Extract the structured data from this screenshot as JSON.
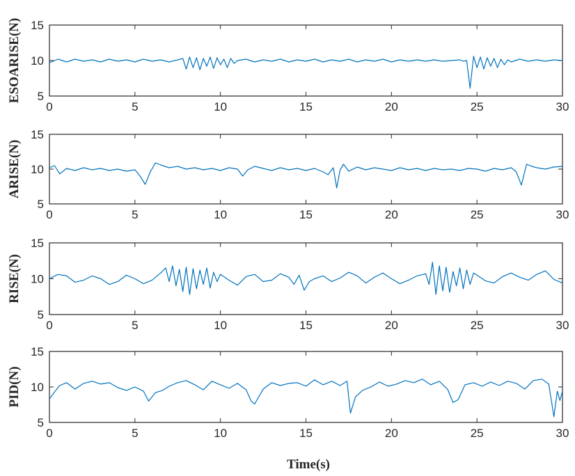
{
  "figure": {
    "xlabel": "Time(s)"
  },
  "chart_data": [
    {
      "type": "line",
      "ylabel": "ESOARISE(N)",
      "xlim": [
        0,
        30
      ],
      "ylim": [
        5,
        15
      ],
      "xticks": [
        0,
        5,
        10,
        15,
        20,
        25,
        30
      ],
      "yticks": [
        5,
        10,
        15
      ],
      "color": "#0072BD",
      "series": [
        {
          "x": [
            0,
            0.5,
            1,
            1.5,
            2,
            2.5,
            3,
            3.5,
            4,
            4.5,
            5,
            5.5,
            6,
            6.5,
            7,
            7.5,
            7.8,
            8,
            8.2,
            8.4,
            8.6,
            8.8,
            9,
            9.2,
            9.4,
            9.6,
            9.8,
            10,
            10.2,
            10.4,
            10.6,
            10.8,
            11,
            11.5,
            12,
            12.5,
            13,
            13.5,
            14,
            14.5,
            15,
            15.5,
            16,
            16.5,
            17,
            17.5,
            18,
            18.5,
            19,
            19.5,
            20,
            20.5,
            21,
            21.5,
            22,
            22.5,
            23,
            23.5,
            24,
            24.2,
            24.4,
            24.6,
            24.8,
            25,
            25.2,
            25.4,
            25.6,
            25.8,
            26,
            26.2,
            26.4,
            26.6,
            26.8,
            27,
            27.5,
            28,
            28.5,
            29,
            29.5,
            30
          ],
          "y": [
            9.7,
            10.2,
            9.8,
            10.2,
            9.9,
            10.1,
            9.8,
            10.2,
            9.9,
            10.1,
            9.8,
            10.2,
            9.9,
            10.1,
            9.8,
            10.1,
            10.3,
            8.8,
            10.5,
            9.0,
            10.4,
            8.7,
            10.3,
            9.2,
            10.5,
            8.9,
            10.4,
            9.4,
            10.2,
            9.0,
            10.3,
            9.6,
            10.0,
            10.2,
            9.8,
            10.1,
            9.9,
            10.2,
            9.8,
            10.1,
            9.9,
            10.2,
            9.8,
            10.1,
            9.9,
            10.2,
            9.8,
            10.1,
            9.9,
            10.2,
            9.8,
            10.1,
            9.9,
            10.1,
            9.9,
            10.1,
            9.9,
            10.0,
            10.1,
            9.9,
            10.0,
            6.1,
            10.6,
            9.0,
            10.5,
            8.8,
            10.4,
            9.2,
            10.3,
            9.0,
            10.2,
            9.4,
            10.1,
            9.8,
            10.2,
            9.9,
            10.1,
            9.9,
            10.1,
            10.0
          ]
        }
      ]
    },
    {
      "type": "line",
      "ylabel": "ARISE(N)",
      "xlim": [
        0,
        30
      ],
      "ylim": [
        5,
        15
      ],
      "xticks": [
        0,
        5,
        10,
        15,
        20,
        25,
        30
      ],
      "yticks": [
        5,
        10,
        15
      ],
      "color": "#0072BD",
      "series": [
        {
          "x": [
            0,
            0.3,
            0.6,
            1,
            1.5,
            2,
            2.5,
            3,
            3.5,
            4,
            4.5,
            5,
            5.3,
            5.6,
            5.9,
            6.2,
            6.5,
            7,
            7.5,
            8,
            8.5,
            9,
            9.5,
            10,
            10.5,
            11,
            11.3,
            11.6,
            12,
            12.5,
            13,
            13.5,
            14,
            14.5,
            15,
            15.5,
            16,
            16.3,
            16.6,
            16.8,
            17,
            17.2,
            17.5,
            18,
            18.5,
            19,
            19.5,
            20,
            20.5,
            21,
            21.5,
            22,
            22.5,
            23,
            23.5,
            24,
            24.5,
            25,
            25.5,
            26,
            26.5,
            27,
            27.3,
            27.6,
            27.9,
            28.2,
            28.5,
            29,
            29.5,
            30
          ],
          "y": [
            10.2,
            10.5,
            9.3,
            10.1,
            9.8,
            10.2,
            9.9,
            10.1,
            9.8,
            10.0,
            9.7,
            9.9,
            9.0,
            7.8,
            9.6,
            10.9,
            10.6,
            10.2,
            10.4,
            10.0,
            10.2,
            9.9,
            10.1,
            9.8,
            10.2,
            10.0,
            9.0,
            9.9,
            10.4,
            10.1,
            9.8,
            10.2,
            9.9,
            10.1,
            9.8,
            10.1,
            9.6,
            9.2,
            10.2,
            7.3,
            9.9,
            10.7,
            9.7,
            10.3,
            9.9,
            10.2,
            10.0,
            9.8,
            10.2,
            9.9,
            10.1,
            9.8,
            10.1,
            9.9,
            10.0,
            9.8,
            10.1,
            10.0,
            9.7,
            10.1,
            9.9,
            10.2,
            9.6,
            7.7,
            10.7,
            10.4,
            10.2,
            10.0,
            10.3,
            10.4
          ]
        }
      ]
    },
    {
      "type": "line",
      "ylabel": "RISE(N)",
      "xlim": [
        0,
        30
      ],
      "ylim": [
        5,
        15
      ],
      "xticks": [
        0,
        5,
        10,
        15,
        20,
        25,
        30
      ],
      "yticks": [
        5,
        10,
        15
      ],
      "color": "#0072BD",
      "series": [
        {
          "x": [
            0,
            0.5,
            1,
            1.5,
            2,
            2.5,
            3,
            3.5,
            4,
            4.5,
            5,
            5.5,
            6,
            6.5,
            6.8,
            7,
            7.2,
            7.4,
            7.6,
            7.8,
            8,
            8.2,
            8.4,
            8.6,
            8.8,
            9,
            9.2,
            9.4,
            9.6,
            9.8,
            10,
            10.5,
            11,
            11.5,
            12,
            12.5,
            13,
            13.5,
            14,
            14.3,
            14.6,
            14.9,
            15.2,
            15.5,
            16,
            16.5,
            17,
            17.5,
            18,
            18.5,
            19,
            19.5,
            20,
            20.5,
            21,
            21.5,
            22,
            22.2,
            22.4,
            22.6,
            22.8,
            23,
            23.2,
            23.4,
            23.6,
            23.8,
            24,
            24.2,
            24.4,
            24.6,
            24.8,
            25,
            25.5,
            26,
            26.5,
            27,
            27.5,
            28,
            28.5,
            29,
            29.5,
            30
          ],
          "y": [
            10.0,
            10.6,
            10.4,
            9.5,
            9.8,
            10.4,
            10.0,
            9.2,
            9.6,
            10.5,
            10.0,
            9.3,
            9.8,
            10.8,
            11.5,
            9.6,
            11.8,
            9.0,
            11.3,
            8.2,
            11.6,
            7.8,
            11.4,
            8.6,
            11.2,
            9.2,
            11.5,
            8.7,
            10.9,
            9.6,
            10.6,
            9.8,
            9.1,
            10.3,
            10.6,
            9.6,
            9.8,
            10.7,
            10.2,
            9.2,
            10.5,
            8.4,
            9.6,
            10.0,
            10.4,
            9.6,
            10.1,
            10.9,
            10.4,
            9.4,
            10.2,
            10.8,
            10.0,
            9.3,
            9.8,
            10.4,
            10.7,
            9.2,
            12.3,
            7.8,
            11.8,
            8.3,
            11.6,
            8.1,
            11.0,
            9.0,
            11.5,
            8.6,
            11.2,
            9.2,
            10.8,
            10.5,
            9.7,
            9.4,
            10.3,
            10.8,
            10.2,
            9.8,
            10.6,
            11.1,
            9.9,
            9.4
          ]
        }
      ]
    },
    {
      "type": "line",
      "ylabel": "PID(N)",
      "xlim": [
        0,
        30
      ],
      "ylim": [
        5,
        15
      ],
      "xticks": [
        0,
        5,
        10,
        15,
        20,
        25,
        30
      ],
      "yticks": [
        5,
        10,
        15
      ],
      "color": "#0072BD",
      "series": [
        {
          "x": [
            0,
            0.3,
            0.6,
            1,
            1.5,
            2,
            2.5,
            3,
            3.5,
            4,
            4.5,
            5,
            5.5,
            5.8,
            6.2,
            6.6,
            7,
            7.5,
            8,
            8.5,
            9,
            9.5,
            10,
            10.5,
            11,
            11.5,
            11.8,
            12,
            12.5,
            13,
            13.5,
            14,
            14.5,
            15,
            15.5,
            16,
            16.5,
            17,
            17.4,
            17.6,
            17.9,
            18.3,
            18.8,
            19.3,
            19.8,
            20.3,
            20.8,
            21.3,
            21.8,
            22.3,
            22.8,
            23.3,
            23.6,
            23.9,
            24.3,
            24.8,
            25.3,
            25.8,
            26.3,
            26.8,
            27.3,
            27.8,
            28.3,
            28.8,
            29.2,
            29.5,
            29.7,
            29.85,
            30
          ],
          "y": [
            8.3,
            9.3,
            10.2,
            10.6,
            9.7,
            10.5,
            10.8,
            10.4,
            10.6,
            9.9,
            9.5,
            10.0,
            9.4,
            8.0,
            9.2,
            9.5,
            10.1,
            10.6,
            10.9,
            10.3,
            9.6,
            10.8,
            10.3,
            9.8,
            10.5,
            9.6,
            8.0,
            7.6,
            9.7,
            10.6,
            10.2,
            10.5,
            10.6,
            10.1,
            11.0,
            10.3,
            10.8,
            10.2,
            10.8,
            6.3,
            8.6,
            9.5,
            10.0,
            10.7,
            10.1,
            10.4,
            10.9,
            10.6,
            11.1,
            10.3,
            10.8,
            9.6,
            7.8,
            8.2,
            10.3,
            10.6,
            10.1,
            10.7,
            10.2,
            10.8,
            10.5,
            9.7,
            10.9,
            11.1,
            10.4,
            5.8,
            9.4,
            8.1,
            9.4
          ]
        }
      ]
    }
  ]
}
